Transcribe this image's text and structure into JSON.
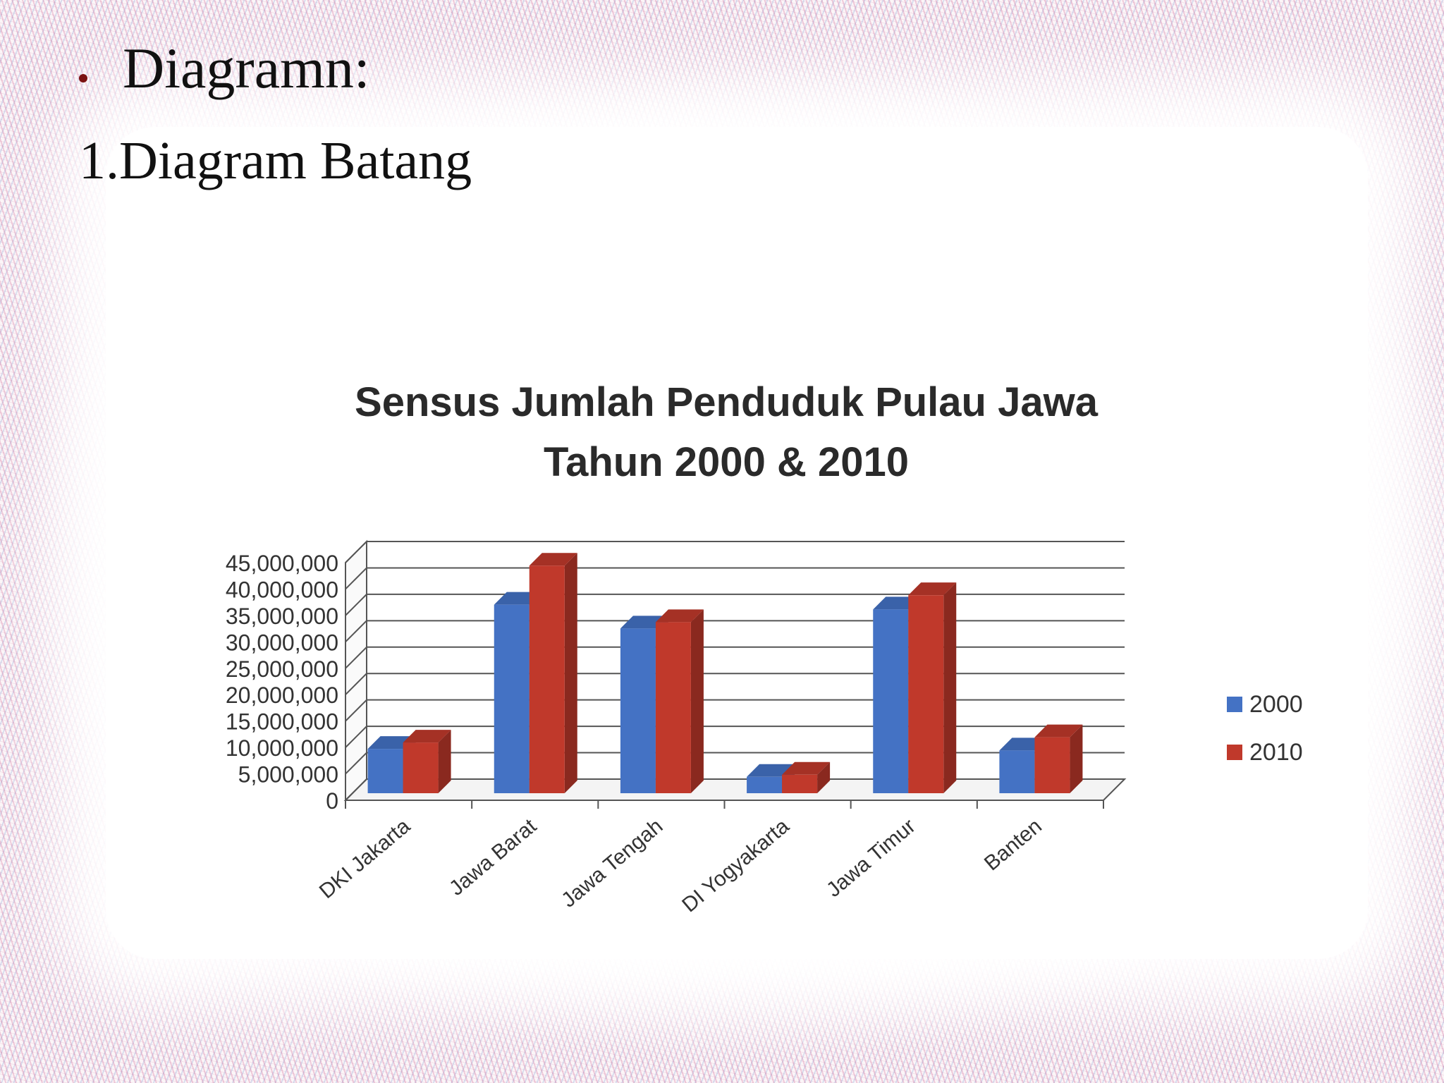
{
  "slide": {
    "bullet_text": "Diagramn:",
    "numbered_prefix": "1.",
    "numbered_text": "Diagram Batang"
  },
  "colors": {
    "series_2000": "#4472c4",
    "series_2010": "#c0392b",
    "bullet": "#7a1010"
  },
  "chart_data": {
    "type": "bar",
    "style": "3d-clustered-column",
    "title": "Sensus Jumlah Penduduk Pulau Jawa Tahun 2000 & 2010",
    "title_lines": [
      "Sensus Jumlah Penduduk Pulau Jawa",
      "Tahun 2000 & 2010"
    ],
    "categories": [
      "DKI Jakarta",
      "Jawa Barat",
      "Jawa Tengah",
      "DI Yogyakarta",
      "Jawa Timur",
      "Banten"
    ],
    "series": [
      {
        "name": "2000",
        "values": [
          8400000,
          35700000,
          31200000,
          3100000,
          34800000,
          8100000
        ]
      },
      {
        "name": "2010",
        "values": [
          9600000,
          43100000,
          32400000,
          3500000,
          37500000,
          10600000
        ]
      }
    ],
    "ylim": [
      0,
      45000000
    ],
    "yticks": [
      "0",
      "5,000,000",
      "10,000,000",
      "15,000,000",
      "20,000,000",
      "25,000,000",
      "30,000,000",
      "35,000,000",
      "40,000,000",
      "45,000,000"
    ],
    "grid": true,
    "legend_position": "right"
  }
}
